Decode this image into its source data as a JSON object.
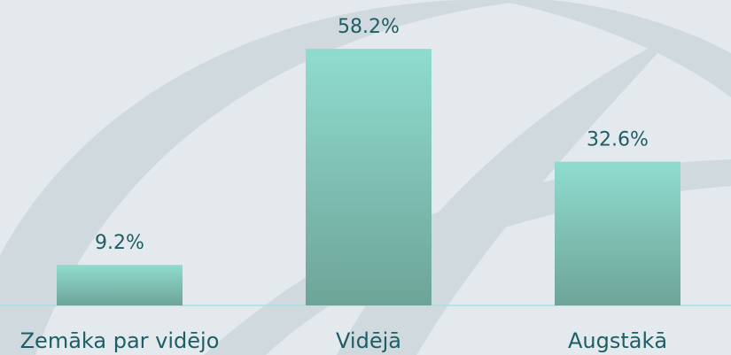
{
  "chart_data": {
    "type": "bar",
    "categories": [
      "Zemāka par vidējo",
      "Vidējā",
      "Augstākā"
    ],
    "values": [
      9.2,
      58.2,
      32.6
    ],
    "value_labels": [
      "9.2%",
      "58.2%",
      "32.6%"
    ],
    "color": [
      "#8fdccf",
      "#6ea498"
    ]
  }
}
